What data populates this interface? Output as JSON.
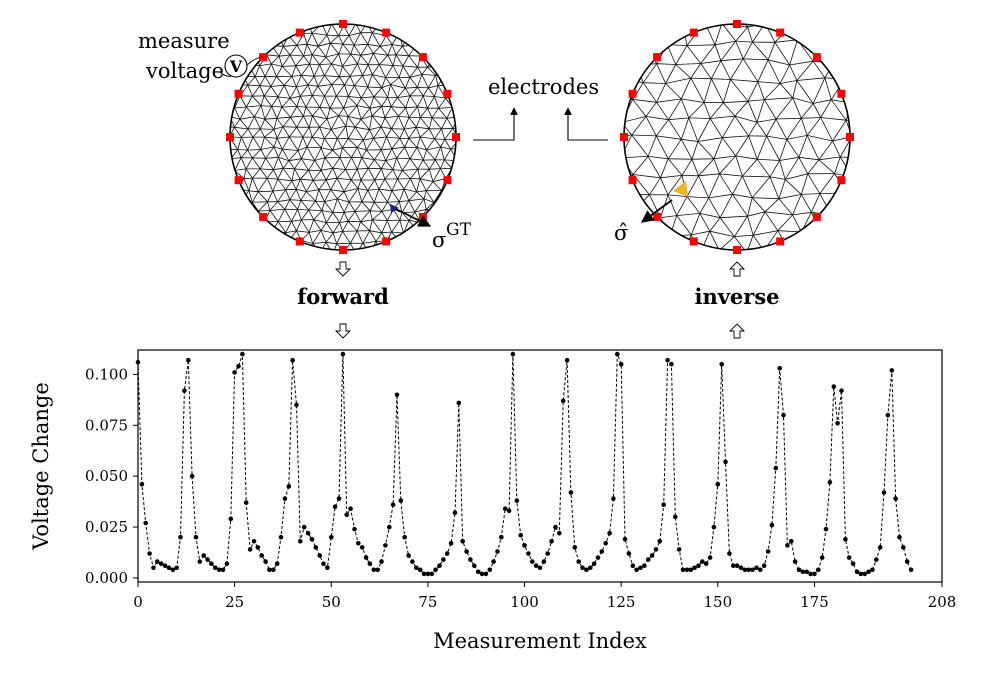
{
  "annotations": {
    "measure": "measure",
    "voltage": "voltage",
    "v_symbol": "V",
    "electrodes": "electrodes",
    "sigma_gt_symbol": "σ",
    "sigma_gt_superscript": "GT",
    "sigma_hat": "σ̂",
    "forward": "forward",
    "inverse": "inverse"
  },
  "colors": {
    "electrode": "#ff0000",
    "gt_element": "#1a237e",
    "estimate_element": "#f0b323"
  },
  "meshes": {
    "left_electrode_count": 16,
    "right_electrode_count": 16
  },
  "chart_data": {
    "type": "line",
    "xlabel": "Measurement Index",
    "ylabel": "Voltage Change",
    "xlim": [
      0,
      208
    ],
    "ylim": [
      -0.002,
      0.112
    ],
    "x_ticks": [
      0,
      25,
      50,
      75,
      100,
      125,
      150,
      175,
      208
    ],
    "y_ticks": [
      0.0,
      0.025,
      0.05,
      0.075,
      0.1
    ],
    "y_tick_labels": [
      "0.000",
      "0.025",
      "0.050",
      "0.075",
      "0.100"
    ],
    "grid": false,
    "marker": "dot",
    "line_style": "dashed",
    "series": [
      {
        "values": [
          0.106,
          0.046,
          0.027,
          0.012,
          0.005,
          0.008,
          0.007,
          0.006,
          0.005,
          0.004,
          0.005,
          0.02,
          0.092,
          0.107,
          0.05,
          0.02,
          0.008,
          0.011,
          0.009,
          0.007,
          0.005,
          0.004,
          0.004,
          0.007,
          0.029,
          0.101,
          0.104,
          0.11,
          0.037,
          0.014,
          0.018,
          0.015,
          0.011,
          0.008,
          0.004,
          0.004,
          0.007,
          0.02,
          0.039,
          0.045,
          0.107,
          0.085,
          0.018,
          0.025,
          0.022,
          0.019,
          0.015,
          0.011,
          0.007,
          0.005,
          0.02,
          0.035,
          0.039,
          0.11,
          0.031,
          0.034,
          0.024,
          0.017,
          0.015,
          0.01,
          0.007,
          0.004,
          0.004,
          0.008,
          0.016,
          0.025,
          0.036,
          0.09,
          0.038,
          0.02,
          0.011,
          0.008,
          0.005,
          0.004,
          0.002,
          0.002,
          0.002,
          0.004,
          0.006,
          0.009,
          0.012,
          0.017,
          0.032,
          0.086,
          0.018,
          0.013,
          0.009,
          0.006,
          0.003,
          0.002,
          0.002,
          0.004,
          0.008,
          0.013,
          0.02,
          0.034,
          0.033,
          0.11,
          0.038,
          0.021,
          0.016,
          0.012,
          0.008,
          0.006,
          0.005,
          0.008,
          0.012,
          0.018,
          0.025,
          0.022,
          0.087,
          0.107,
          0.042,
          0.015,
          0.008,
          0.005,
          0.004,
          0.005,
          0.007,
          0.01,
          0.013,
          0.017,
          0.022,
          0.039,
          0.11,
          0.105,
          0.019,
          0.012,
          0.006,
          0.004,
          0.005,
          0.006,
          0.009,
          0.011,
          0.014,
          0.018,
          0.036,
          0.107,
          0.105,
          0.03,
          0.014,
          0.004,
          0.004,
          0.004,
          0.005,
          0.006,
          0.008,
          0.007,
          0.01,
          0.025,
          0.046,
          0.105,
          0.057,
          0.012,
          0.006,
          0.006,
          0.005,
          0.004,
          0.004,
          0.004,
          0.005,
          0.004,
          0.006,
          0.013,
          0.026,
          0.054,
          0.103,
          0.08,
          0.016,
          0.018,
          0.008,
          0.004,
          0.003,
          0.003,
          0.002,
          0.002,
          0.004,
          0.01,
          0.024,
          0.047,
          0.094,
          0.076,
          0.092,
          0.019,
          0.01,
          0.007,
          0.003,
          0.002,
          0.002,
          0.003,
          0.004,
          0.009,
          0.015,
          0.042,
          0.08,
          0.102,
          0.039,
          0.02,
          0.015,
          0.008,
          0.004
        ]
      }
    ]
  }
}
